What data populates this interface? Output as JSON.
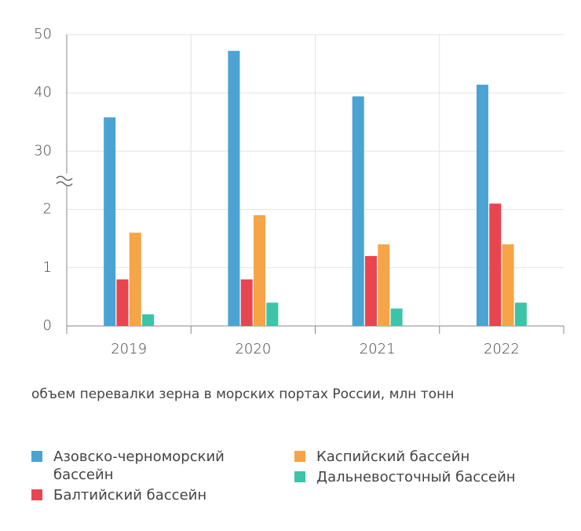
{
  "chart_data": {
    "type": "bar",
    "subtitle": "объем перевалки зерна в морских портах России, млн тонн",
    "categories": [
      "2019",
      "2020",
      "2021",
      "2022"
    ],
    "series": [
      {
        "name": "Азовско-черноморский бассейн",
        "color": "#4aa3d2",
        "values": [
          35.8,
          47.2,
          39.4,
          41.4
        ]
      },
      {
        "name": "Балтийский бассейн",
        "color": "#e84550",
        "values": [
          0.8,
          0.8,
          1.2,
          2.1
        ]
      },
      {
        "name": "Каспийский бассейн",
        "color": "#f5a447",
        "values": [
          1.6,
          1.9,
          1.4,
          1.4
        ]
      },
      {
        "name": "Дальневосточный бассейн",
        "color": "#3cc3a8",
        "values": [
          0.2,
          0.4,
          0.3,
          0.4
        ]
      }
    ],
    "ylim": [
      0,
      50
    ],
    "y_break": [
      2.5,
      25
    ],
    "yticks": [
      0,
      1,
      2,
      30,
      40,
      50
    ],
    "grid": true
  }
}
